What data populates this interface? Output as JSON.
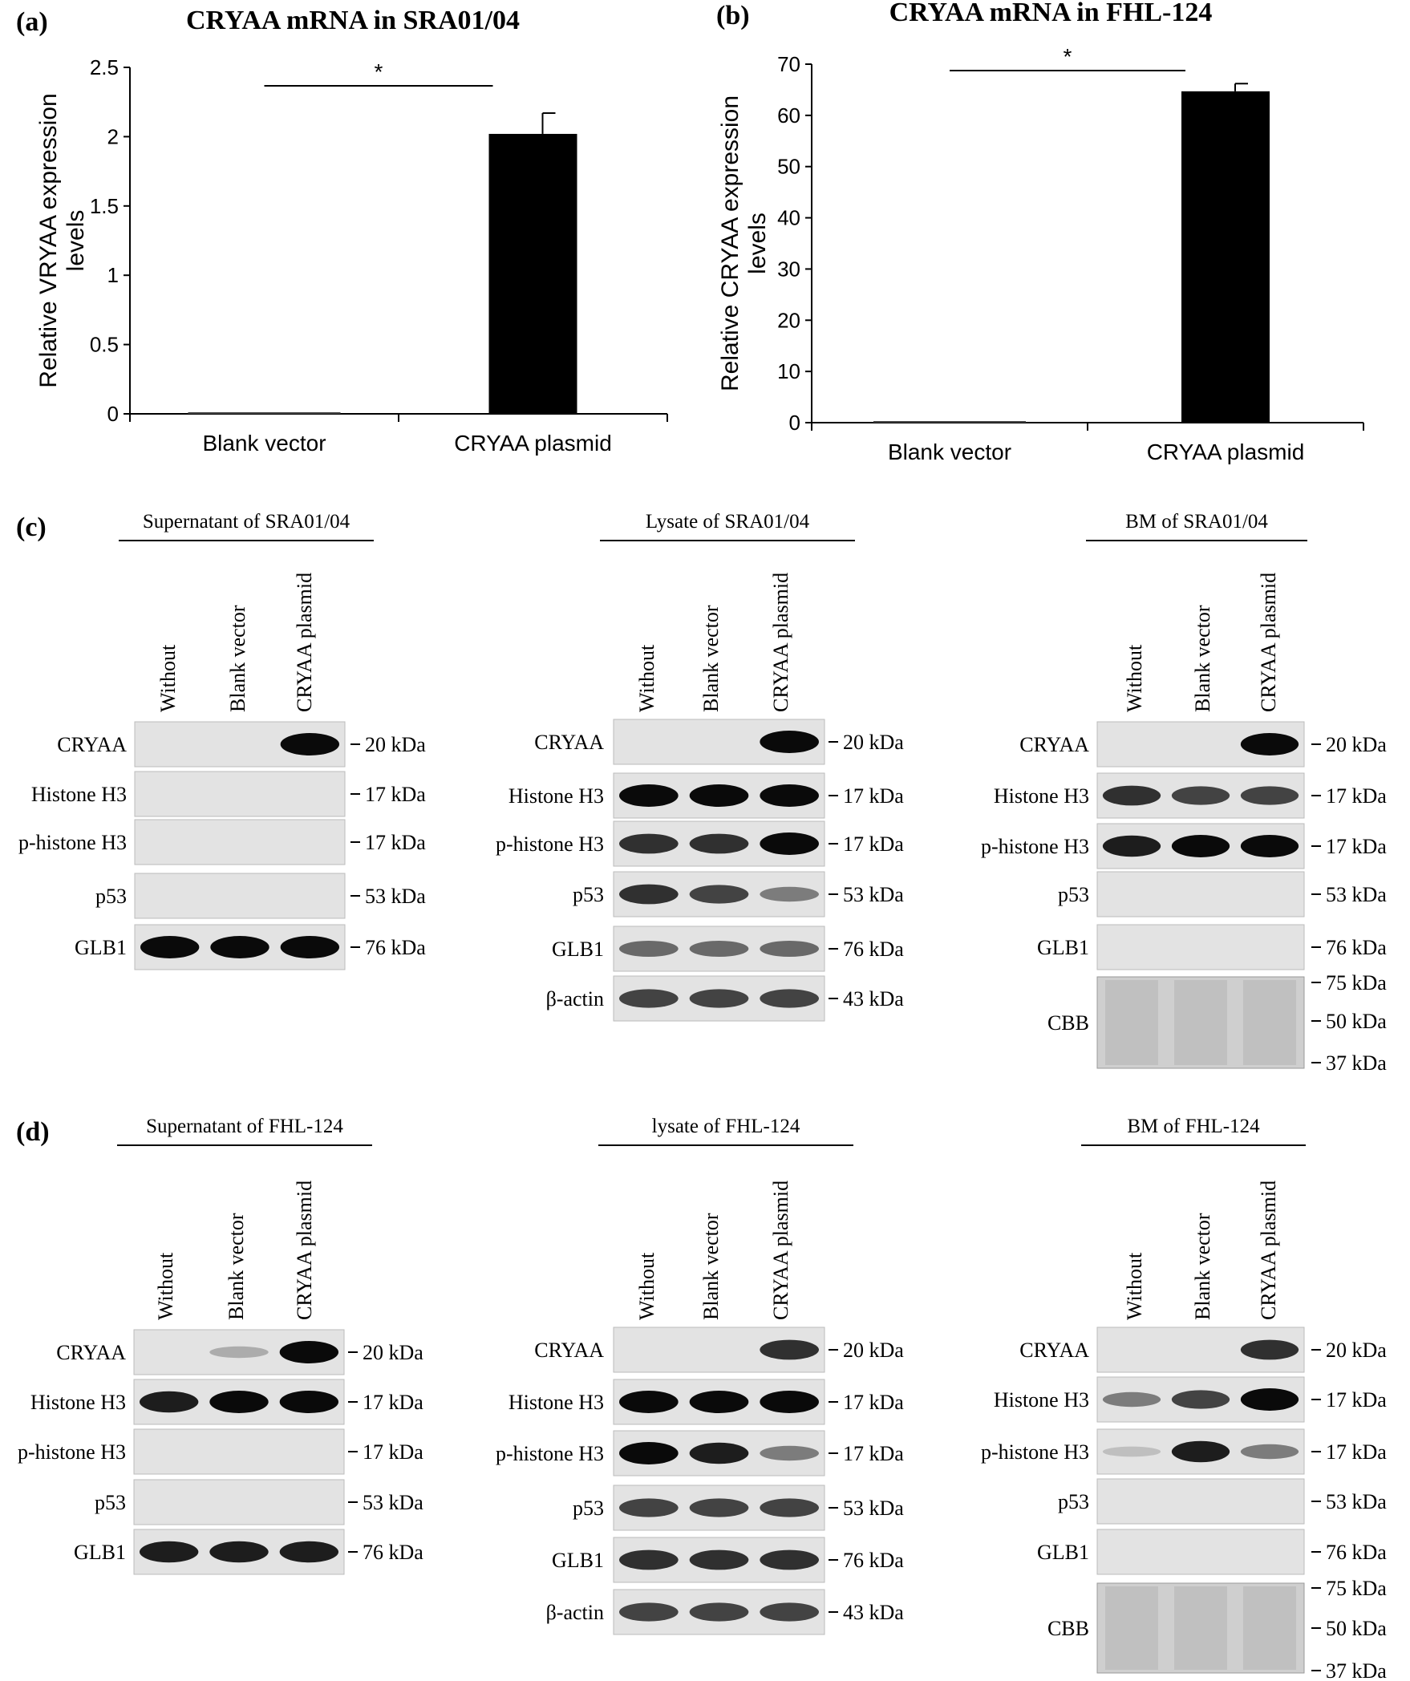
{
  "chart_data": [
    {
      "type": "bar",
      "panel": "(a)",
      "title": "CRYAA mRNA in SRA01/04",
      "categories": [
        "Blank vector",
        "CRYAA plasmid"
      ],
      "values": [
        0.0,
        2.02
      ],
      "errors": [
        0.0,
        0.15
      ],
      "ylabel_line1": "Relative VRYAA expression",
      "ylabel_line2": "levels",
      "ylim": [
        0,
        2.5
      ],
      "yticks": [
        "0",
        "0.5",
        "1",
        "1.5",
        "2",
        "2.5"
      ],
      "tick_values": [
        0,
        0.5,
        1,
        1.5,
        2,
        2.5
      ],
      "significance": "*"
    },
    {
      "type": "bar",
      "panel": "(b)",
      "title": "CRYAA mRNA in FHL-124",
      "categories": [
        "Blank vector",
        "CRYAA plasmid"
      ],
      "values": [
        0.0,
        64.7
      ],
      "errors": [
        0.0,
        1.5
      ],
      "ylabel_line1": "Relative CRYAA expression",
      "ylabel_line2": "levels",
      "ylim": [
        0,
        70
      ],
      "yticks": [
        "0",
        "10",
        "20",
        "30",
        "40",
        "50",
        "60",
        "70"
      ],
      "tick_values": [
        0,
        10,
        20,
        30,
        40,
        50,
        60,
        70
      ],
      "significance": "*"
    }
  ],
  "blots": {
    "c_label": "(c)",
    "d_label": "(d)",
    "lanes": [
      "Without",
      "Blank vector",
      "CRYAA plasmid"
    ],
    "panels": [
      {
        "id": "c1",
        "title": "Supernatant of SRA01/04",
        "rows": [
          {
            "label": "CRYAA",
            "kda": "20 kDa",
            "bands": [
              0,
              0,
              1
            ]
          },
          {
            "label": "Histone H3",
            "kda": "17 kDa",
            "bands": [
              0,
              0,
              0
            ]
          },
          {
            "label": "p-histone H3",
            "kda": "17 kDa",
            "bands": [
              0,
              0,
              0
            ]
          },
          {
            "label": "p53",
            "kda": "53 kDa",
            "bands": [
              0,
              0,
              0
            ]
          },
          {
            "label": "GLB1",
            "kda": "76 kDa",
            "bands": [
              1,
              1,
              1
            ]
          }
        ]
      },
      {
        "id": "c2",
        "title": "Lysate of SRA01/04",
        "rows": [
          {
            "label": "CRYAA",
            "kda": "20 kDa",
            "bands": [
              0,
              0,
              1
            ]
          },
          {
            "label": "Histone H3",
            "kda": "17 kDa",
            "bands": [
              1,
              1,
              1
            ]
          },
          {
            "label": "p-histone H3",
            "kda": "17 kDa",
            "bands": [
              0.8,
              0.8,
              1
            ]
          },
          {
            "label": "p53",
            "kda": "53 kDa",
            "bands": [
              0.8,
              0.7,
              0.4
            ]
          },
          {
            "label": "GLB1",
            "kda": "76 kDa",
            "bands": [
              0.5,
              0.5,
              0.5
            ]
          },
          {
            "label": "β-actin",
            "kda": "43 kDa",
            "bands": [
              0.7,
              0.7,
              0.7
            ]
          }
        ]
      },
      {
        "id": "c3",
        "title": "BM of SRA01/04",
        "rows": [
          {
            "label": "CRYAA",
            "kda": "20 kDa",
            "bands": [
              0,
              0,
              1
            ]
          },
          {
            "label": "Histone H3",
            "kda": "17 kDa",
            "bands": [
              0.8,
              0.7,
              0.7
            ]
          },
          {
            "label": "p-histone H3",
            "kda": "17 kDa",
            "bands": [
              0.9,
              1,
              1
            ]
          },
          {
            "label": "p53",
            "kda": "53 kDa",
            "bands": [
              0,
              0,
              0
            ]
          },
          {
            "label": "GLB1",
            "kda": "76 kDa",
            "bands": [
              0,
              0,
              0
            ]
          }
        ],
        "cbb": {
          "label": "CBB",
          "markers": [
            "75 kDa",
            "50 kDa",
            "37 kDa"
          ]
        }
      },
      {
        "id": "d1",
        "title": "Supernatant of FHL-124",
        "rows": [
          {
            "label": "CRYAA",
            "kda": "20 kDa",
            "bands": [
              0,
              0.15,
              1
            ]
          },
          {
            "label": "Histone H3",
            "kda": "17 kDa",
            "bands": [
              0.9,
              1,
              1
            ]
          },
          {
            "label": "p-histone H3",
            "kda": "17 kDa",
            "bands": [
              0,
              0,
              0
            ]
          },
          {
            "label": "p53",
            "kda": "53 kDa",
            "bands": [
              0,
              0,
              0
            ]
          },
          {
            "label": "GLB1",
            "kda": "76 kDa",
            "bands": [
              0.9,
              0.9,
              0.9
            ]
          }
        ]
      },
      {
        "id": "d2",
        "title": "lysate of FHL-124",
        "rows": [
          {
            "label": "CRYAA",
            "kda": "20 kDa",
            "bands": [
              0,
              0,
              0.8
            ]
          },
          {
            "label": "Histone H3",
            "kda": "17 kDa",
            "bands": [
              1,
              1,
              1
            ]
          },
          {
            "label": "p-histone H3",
            "kda": "17 kDa",
            "bands": [
              1,
              0.9,
              0.4
            ]
          },
          {
            "label": "p53",
            "kda": "53 kDa",
            "bands": [
              0.7,
              0.7,
              0.7
            ]
          },
          {
            "label": "GLB1",
            "kda": "76 kDa",
            "bands": [
              0.8,
              0.8,
              0.8
            ]
          },
          {
            "label": "β-actin",
            "kda": "43 kDa",
            "bands": [
              0.7,
              0.7,
              0.7
            ]
          }
        ]
      },
      {
        "id": "d3",
        "title": "BM of FHL-124",
        "rows": [
          {
            "label": "CRYAA",
            "kda": "20 kDa",
            "bands": [
              0,
              0,
              0.8
            ]
          },
          {
            "label": "Histone H3",
            "kda": "17 kDa",
            "bands": [
              0.4,
              0.7,
              1
            ]
          },
          {
            "label": "p-histone H3",
            "kda": "17 kDa",
            "bands": [
              0.05,
              0.9,
              0.4
            ]
          },
          {
            "label": "p53",
            "kda": "53 kDa",
            "bands": [
              0,
              0,
              0
            ]
          },
          {
            "label": "GLB1",
            "kda": "76 kDa",
            "bands": [
              0,
              0,
              0
            ]
          }
        ],
        "cbb": {
          "label": "CBB",
          "markers": [
            "75 kDa",
            "50 kDa",
            "37 kDa"
          ]
        }
      }
    ]
  }
}
